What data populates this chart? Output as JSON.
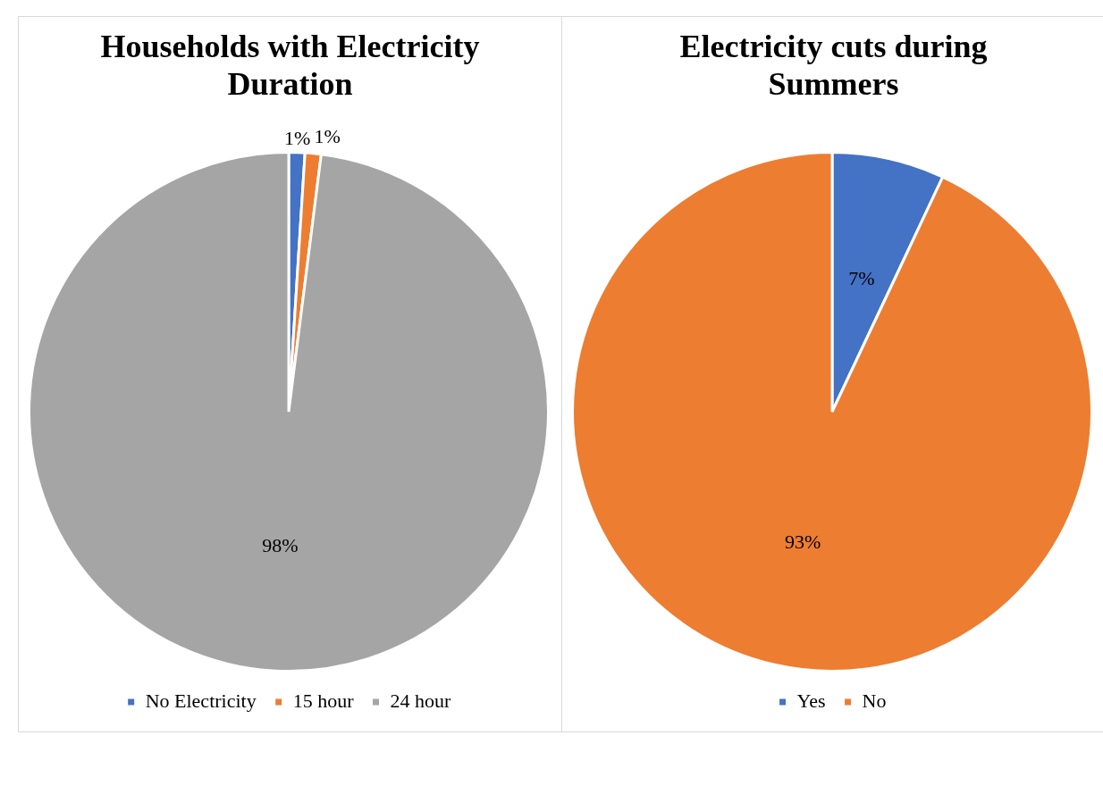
{
  "chart_data": [
    {
      "type": "pie",
      "title": "Households with Electricity Duration",
      "categories": [
        "No Electricity",
        "15 hour",
        "24 hour"
      ],
      "values": [
        1,
        1,
        98
      ],
      "colors": [
        "#4472c4",
        "#ed7d31",
        "#a5a5a5"
      ],
      "value_labels": [
        "1%",
        "1%",
        "98%"
      ],
      "legend": "bottom"
    },
    {
      "type": "pie",
      "title": "Electricity cuts during Summers",
      "categories": [
        "Yes",
        "No"
      ],
      "values": [
        7,
        93
      ],
      "colors": [
        "#4472c4",
        "#ed7d31"
      ],
      "value_labels": [
        "7%",
        "93%"
      ],
      "legend": "bottom"
    }
  ]
}
